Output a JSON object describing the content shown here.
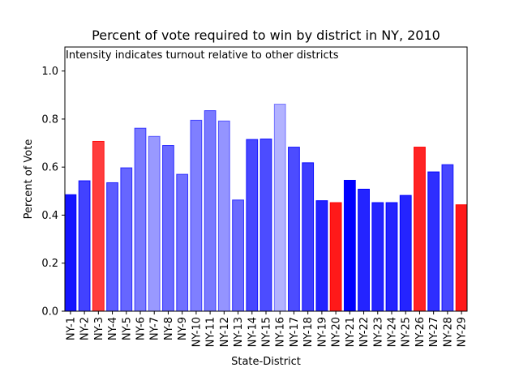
{
  "chart_data": {
    "type": "bar",
    "title": "Percent of vote required to win by district in NY, 2010",
    "annotation": "Intensity indicates turnout relative to other districts",
    "xlabel": "State-District",
    "ylabel": "Percent of Vote",
    "ylim": [
      0,
      1.1
    ],
    "yticks": [
      0.0,
      0.2,
      0.4,
      0.6,
      0.8,
      1.0
    ],
    "ytick_labels": [
      "0.0",
      "0.2",
      "0.4",
      "0.6",
      "0.8",
      "1.0"
    ],
    "grid": false,
    "categories": [
      "NY-1",
      "NY-2",
      "NY-3",
      "NY-4",
      "NY-5",
      "NY-6",
      "NY-7",
      "NY-8",
      "NY-9",
      "NY-10",
      "NY-11",
      "NY-12",
      "NY-13",
      "NY-14",
      "NY-15",
      "NY-16",
      "NY-17",
      "NY-18",
      "NY-19",
      "NY-20",
      "NY-21",
      "NY-22",
      "NY-23",
      "NY-24",
      "NY-25",
      "NY-26",
      "NY-27",
      "NY-28",
      "NY-29"
    ],
    "values": [
      0.485,
      0.543,
      0.707,
      0.535,
      0.597,
      0.762,
      0.728,
      0.69,
      0.57,
      0.795,
      0.835,
      0.792,
      0.463,
      0.715,
      0.717,
      0.862,
      0.683,
      0.618,
      0.46,
      0.452,
      0.545,
      0.508,
      0.452,
      0.452,
      0.482,
      0.683,
      0.58,
      0.61,
      0.443
    ],
    "colors": [
      "#0000ff",
      "#0000ff",
      "#ff0000",
      "#0000ff",
      "#0000ff",
      "#0000ff",
      "#0000ff",
      "#0000ff",
      "#0000ff",
      "#0000ff",
      "#0000ff",
      "#0000ff",
      "#0000ff",
      "#0000ff",
      "#0000ff",
      "#0000ff",
      "#0000ff",
      "#0000ff",
      "#0000ff",
      "#ff0000",
      "#0000ff",
      "#0000ff",
      "#0000ff",
      "#0000ff",
      "#0000ff",
      "#ff0000",
      "#0000ff",
      "#0000ff",
      "#ff0000"
    ],
    "intensity": [
      0.92,
      0.74,
      0.76,
      0.64,
      0.6,
      0.52,
      0.4,
      0.58,
      0.56,
      0.5,
      0.52,
      0.42,
      0.58,
      0.72,
      0.7,
      0.3,
      0.7,
      0.76,
      0.86,
      0.9,
      1.0,
      0.86,
      0.86,
      0.86,
      0.86,
      0.86,
      0.82,
      0.72,
      0.9
    ]
  }
}
